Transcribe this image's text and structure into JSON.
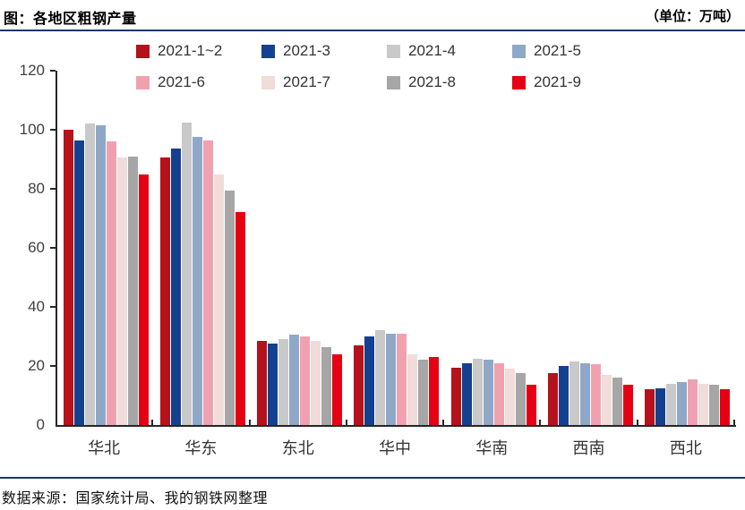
{
  "header": {
    "title": "图：各地区粗钢产量",
    "unit": "（单位：万吨）"
  },
  "footer": {
    "source": "数据来源：国家统计局、我的钢铁网整理"
  },
  "colors": {
    "rule": "#1f3864",
    "axis": "#262626",
    "tick_label_color": "#404040"
  },
  "chart_data": {
    "type": "bar",
    "title": "图：各地区粗钢产量",
    "unit_label": "万吨",
    "categories": [
      "华北",
      "华东",
      "东北",
      "华中",
      "华南",
      "西南",
      "西北"
    ],
    "series": [
      {
        "name": "2021-1~2",
        "color": "#b5121b",
        "values": [
          100,
          90.5,
          28.5,
          27,
          19.5,
          17.5,
          12
        ]
      },
      {
        "name": "2021-3",
        "color": "#14418f",
        "values": [
          96.5,
          93.5,
          27.5,
          30,
          21,
          20,
          12.5
        ]
      },
      {
        "name": "2021-4",
        "color": "#c9c9c9",
        "values": [
          102,
          102.5,
          29,
          32,
          22.5,
          21.5,
          14
        ]
      },
      {
        "name": "2021-5",
        "color": "#8fa8c8",
        "values": [
          101.5,
          97.5,
          30.5,
          31,
          22,
          21,
          14.5
        ]
      },
      {
        "name": "2021-6",
        "color": "#f0a1af",
        "values": [
          96,
          96.5,
          30,
          31,
          21,
          20.5,
          15.5
        ]
      },
      {
        "name": "2021-7",
        "color": "#f0dcd8",
        "values": [
          90.5,
          85,
          28.5,
          24,
          19,
          17,
          14
        ]
      },
      {
        "name": "2021-8",
        "color": "#a6a6a6",
        "values": [
          91,
          79.5,
          26.5,
          22,
          17.5,
          16,
          13.5
        ]
      },
      {
        "name": "2021-9",
        "color": "#e60013",
        "values": [
          85,
          72,
          24,
          23,
          13.5,
          13.5,
          12
        ]
      }
    ],
    "ylim": [
      0,
      120
    ],
    "yticks": [
      0,
      20,
      40,
      60,
      80,
      100,
      120
    ],
    "grid": false,
    "legend_position": "top"
  }
}
